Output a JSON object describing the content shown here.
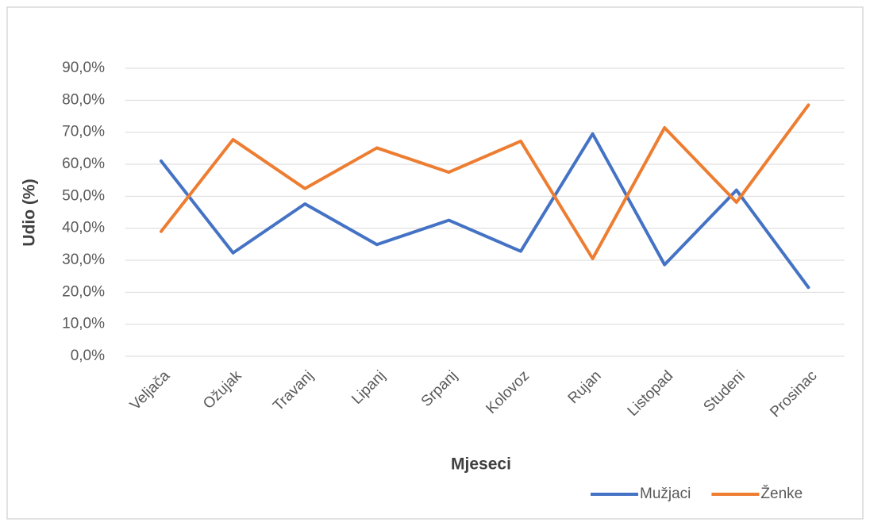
{
  "chart_data": {
    "type": "line",
    "x_label": "Mjeseci",
    "y_label": "Udio (%)",
    "categories": [
      "Veljača",
      "Ožujak",
      "Travanj",
      "Lipanj",
      "Srpanj",
      "Kolovoz",
      "Rujan",
      "Listopad",
      "Studeni",
      "Prosinac"
    ],
    "series": [
      {
        "name": "Mužjaci",
        "color": "#4472c4",
        "values": [
          61.0,
          32.3,
          47.6,
          34.9,
          42.5,
          32.8,
          69.5,
          28.6,
          51.9,
          21.5
        ]
      },
      {
        "name": "Ženke",
        "color": "#ed7d31",
        "values": [
          39.0,
          67.7,
          52.4,
          65.1,
          57.5,
          67.2,
          30.5,
          71.4,
          48.1,
          78.5
        ]
      }
    ],
    "ylim": [
      0,
      90
    ],
    "yticks": [
      {
        "value": 0,
        "label": "0,0%"
      },
      {
        "value": 10,
        "label": "10,0%"
      },
      {
        "value": 20,
        "label": "20,0%"
      },
      {
        "value": 30,
        "label": "30,0%"
      },
      {
        "value": 40,
        "label": "40,0%"
      },
      {
        "value": 50,
        "label": "50,0%"
      },
      {
        "value": 60,
        "label": "60,0%"
      },
      {
        "value": 70,
        "label": "70,0%"
      },
      {
        "value": 80,
        "label": "80,0%"
      },
      {
        "value": 90,
        "label": "90,0%"
      }
    ],
    "grid": true,
    "legend": "bottom-right"
  }
}
